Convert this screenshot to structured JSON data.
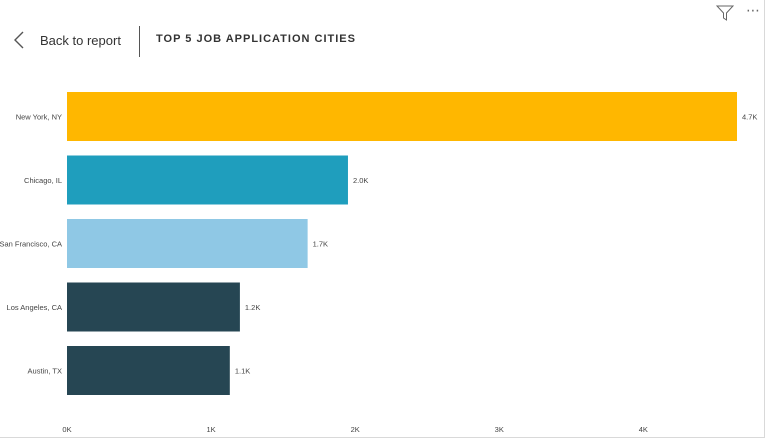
{
  "header": {
    "back_label": "Back to report",
    "title": "TOP 5 JOB APPLICATION CITIES"
  },
  "icons": {
    "back": "chevron-left-icon",
    "filter": "filter-icon",
    "more": "more-options-icon"
  },
  "chart_data": {
    "type": "bar",
    "orientation": "horizontal",
    "title": "TOP 5 JOB APPLICATION CITIES",
    "categories": [
      "New York, NY",
      "Chicago, IL",
      "San Francisco, CA",
      "Los Angeles, CA",
      "Austin, TX"
    ],
    "values": [
      4.65,
      1.95,
      1.67,
      1.2,
      1.13
    ],
    "value_labels": [
      "4.7K",
      "2.0K",
      "1.7K",
      "1.2K",
      "1.1K"
    ],
    "colors": [
      "#FFB700",
      "#1F9EBD",
      "#8FC8E5",
      "#264653",
      "#264653"
    ],
    "xlim": [
      0,
      4.65
    ],
    "x_ticks": [
      0,
      1,
      2,
      3,
      4
    ],
    "x_tick_labels": [
      "0K",
      "1K",
      "2K",
      "3K",
      "4K"
    ],
    "xlabel": "",
    "ylabel": "",
    "grid": false,
    "legend": "none"
  }
}
